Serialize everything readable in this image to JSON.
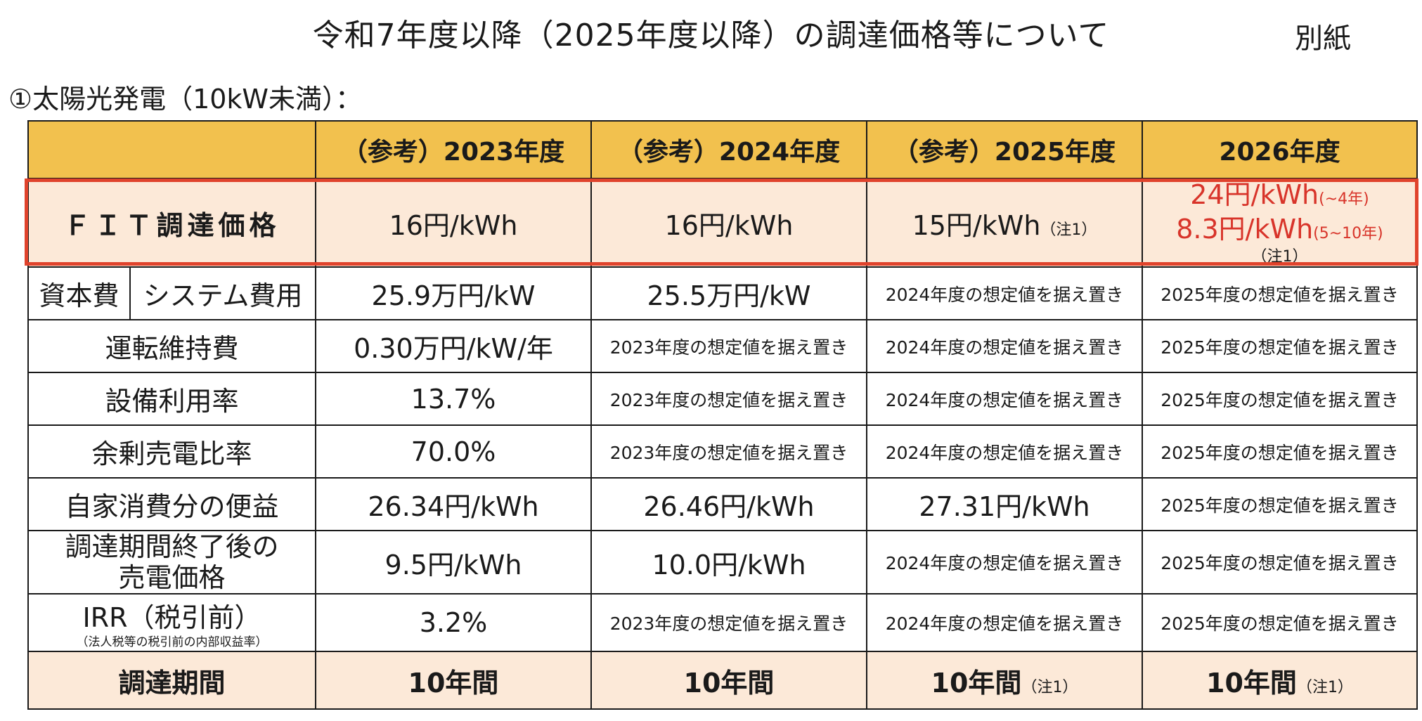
{
  "title": "令和7年度以降（2025年度以降）の調達価格等について",
  "annex": "別紙",
  "section": "①太陽光発電（10kW未満）：",
  "colors": {
    "header_bg": "#f2c14e",
    "highlight_row_bg": "#fce9d8",
    "accent_red": "#d8342a"
  },
  "header": {
    "blank": "",
    "years": [
      "（参考）2023年度",
      "（参考）2024年度",
      "（参考）2025年度",
      "2026年度"
    ]
  },
  "fit": {
    "label": "ＦＩＴ調達価格",
    "y2023": "16円/kWh",
    "y2024": "16円/kWh",
    "y2025": "15円/kWh",
    "y2025_note": "（注1）",
    "y2026_line1": "24円/kWh",
    "y2026_line1_small": "(~4年)",
    "y2026_line2": "8.3円/kWh",
    "y2026_line2_small": "(5~10年)",
    "y2026_note": "（注1）"
  },
  "rows": {
    "system_cost": {
      "label_main": "資本費",
      "label_sub": "システム費用",
      "values": [
        "25.9万円/kW",
        "25.5万円/kW",
        "2024年度の想定値を据え置き",
        "2025年度の想定値を据え置き"
      ]
    },
    "om_cost": {
      "label": "運転維持費",
      "values": [
        "0.30万円/kW/年",
        "2023年度の想定値を据え置き",
        "2024年度の想定値を据え置き",
        "2025年度の想定値を据え置き"
      ]
    },
    "capacity_factor": {
      "label": "設備利用率",
      "values": [
        "13.7%",
        "2023年度の想定値を据え置き",
        "2024年度の想定値を据え置き",
        "2025年度の想定値を据え置き"
      ]
    },
    "surplus_ratio": {
      "label": "余剰売電比率",
      "values": [
        "70.0%",
        "2023年度の想定値を据え置き",
        "2024年度の想定値を据え置き",
        "2025年度の想定値を据え置き"
      ]
    },
    "self_consumption": {
      "label": "自家消費分の便益",
      "values": [
        "26.34円/kWh",
        "26.46円/kWh",
        "27.31円/kWh",
        "2025年度の想定値を据え置き"
      ]
    },
    "post_period_price": {
      "label_line1": "調達期間終了後の",
      "label_line2": "売電価格",
      "values": [
        "9.5円/kWh",
        "10.0円/kWh",
        "2024年度の想定値を据え置き",
        "2025年度の想定値を据え置き"
      ]
    },
    "irr": {
      "label": "IRR（税引前）",
      "label_sub": "（法人税等の税引前の内部収益率）",
      "values": [
        "3.2%",
        "2023年度の想定値を据え置き",
        "2024年度の想定値を据え置き",
        "2025年度の想定値を据え置き"
      ]
    },
    "period": {
      "label": "調達期間",
      "values": [
        "10年間",
        "10年間",
        "10年間",
        "10年間"
      ],
      "note": "（注1）"
    }
  }
}
